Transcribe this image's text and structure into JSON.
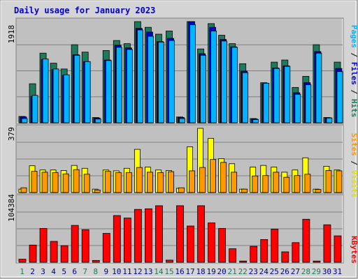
{
  "title": "Daily usage for January 2023",
  "colors": {
    "hits": "#1e7a5c",
    "files": "#0000cc",
    "pages": "#00b4ff",
    "visits": "#ffff00",
    "sites": "#ff9900",
    "kbytes": "#ff0000",
    "weekend_label": "#1e7a5c",
    "weekday_label": "#000080"
  },
  "legend": {
    "top": [
      "Pages",
      "Files",
      "Hits"
    ],
    "middle": [
      "Sites",
      "Visits"
    ],
    "bottom": [
      "KBytes"
    ]
  },
  "chart_data": [
    {
      "type": "bar",
      "panel": "hits-files-pages",
      "ymax_label": "1918",
      "ylim": [
        0,
        1918
      ],
      "categories": [
        "1",
        "2",
        "3",
        "4",
        "5",
        "6",
        "7",
        "8",
        "9",
        "10",
        "11",
        "12",
        "13",
        "14",
        "15",
        "16",
        "17",
        "18",
        "19",
        "20",
        "21",
        "22",
        "23",
        "24",
        "25",
        "26",
        "27",
        "28",
        "29",
        "30",
        "31"
      ],
      "weekend_days": [
        "1",
        "7",
        "8",
        "14",
        "15",
        "21",
        "22",
        "28",
        "29"
      ],
      "series": [
        {
          "name": "Hits",
          "values": [
            120,
            740,
            1320,
            1130,
            1020,
            1480,
            1340,
            100,
            1370,
            1560,
            1500,
            1920,
            1810,
            1680,
            1740,
            110,
            1950,
            1400,
            1880,
            1660,
            1500,
            1120,
            80,
            760,
            1150,
            1190,
            670,
            880,
            1480,
            100,
            1150
          ]
        },
        {
          "name": "Files",
          "values": [
            110,
            500,
            1200,
            1010,
            900,
            1290,
            1160,
            90,
            1190,
            1470,
            1420,
            1790,
            1720,
            1540,
            1600,
            100,
            1920,
            1310,
            1810,
            1580,
            1440,
            980,
            70,
            740,
            1040,
            1080,
            570,
            760,
            1350,
            95,
            1030
          ]
        },
        {
          "name": "Pages",
          "values": [
            80,
            520,
            1210,
            1020,
            910,
            1280,
            1160,
            70,
            1180,
            1430,
            1390,
            1760,
            1640,
            1530,
            1560,
            80,
            1860,
            1280,
            1740,
            1550,
            1430,
            950,
            60,
            750,
            1030,
            1070,
            540,
            720,
            1320,
            90,
            970
          ]
        }
      ]
    },
    {
      "type": "bar",
      "panel": "visits-sites",
      "ymax_label": "379",
      "ylim": [
        0,
        379
      ],
      "categories": [
        "1",
        "2",
        "3",
        "4",
        "5",
        "6",
        "7",
        "8",
        "9",
        "10",
        "11",
        "12",
        "13",
        "14",
        "15",
        "16",
        "17",
        "18",
        "19",
        "20",
        "21",
        "22",
        "23",
        "24",
        "25",
        "26",
        "27",
        "28",
        "29",
        "30",
        "31"
      ],
      "series": [
        {
          "name": "Visits",
          "values": [
            20,
            158,
            133,
            133,
            130,
            160,
            143,
            20,
            133,
            128,
            143,
            255,
            150,
            133,
            130,
            25,
            270,
            380,
            320,
            200,
            170,
            20,
            150,
            160,
            150,
            120,
            133,
            205,
            20,
            155,
            133
          ]
        },
        {
          "name": "Sites",
          "values": [
            28,
            125,
            120,
            118,
            110,
            135,
            108,
            15,
            125,
            118,
            118,
            148,
            120,
            118,
            123,
            28,
            128,
            148,
            195,
            178,
            120,
            20,
            98,
            100,
            120,
            90,
            100,
            108,
            18,
            130,
            128
          ]
        }
      ]
    },
    {
      "type": "bar",
      "panel": "kbytes",
      "ymax_label": "104384",
      "ylim": [
        0,
        104384
      ],
      "categories": [
        "1",
        "2",
        "3",
        "4",
        "5",
        "6",
        "7",
        "8",
        "9",
        "10",
        "11",
        "12",
        "13",
        "14",
        "15",
        "16",
        "17",
        "18",
        "19",
        "20",
        "21",
        "22",
        "23",
        "24",
        "25",
        "26",
        "27",
        "28",
        "29",
        "30",
        "31"
      ],
      "series": [
        {
          "name": "KBytes",
          "values": [
            5000,
            28000,
            55000,
            34000,
            27000,
            60000,
            53000,
            3000,
            47000,
            76000,
            72000,
            86000,
            87000,
            92000,
            3500,
            92000,
            59000,
            92000,
            64000,
            55000,
            22000,
            2000,
            26000,
            37000,
            54000,
            17000,
            32000,
            70000,
            2000,
            61000,
            43000
          ]
        }
      ]
    }
  ]
}
